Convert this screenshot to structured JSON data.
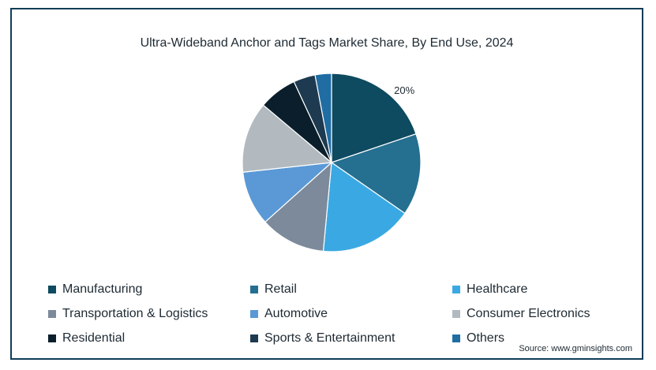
{
  "colors": {
    "frame": "#0f3d57",
    "slice_stroke": "#ffffff"
  },
  "chart_data": {
    "type": "pie",
    "title": "Ultra-Wideband Anchor and Tags Market Share, By End Use, 2024",
    "start_angle_deg": 0,
    "direction": "clockwise",
    "slices": [
      {
        "label": "Manufacturing",
        "value": 20,
        "color": "#0e4a60",
        "data_label": "20%"
      },
      {
        "label": "Retail",
        "value": 15,
        "color": "#256f90",
        "data_label": ""
      },
      {
        "label": "Healthcare",
        "value": 17,
        "color": "#3aa9e3",
        "data_label": ""
      },
      {
        "label": "Transportation & Logistics",
        "value": 12,
        "color": "#7c8a9b",
        "data_label": ""
      },
      {
        "label": "Automotive",
        "value": 10,
        "color": "#5a99d6",
        "data_label": ""
      },
      {
        "label": "Consumer Electronics",
        "value": 13,
        "color": "#b2babf",
        "data_label": ""
      },
      {
        "label": "Residential",
        "value": 7,
        "color": "#0a1f2b",
        "data_label": ""
      },
      {
        "label": "Sports & Entertainment",
        "value": 4,
        "color": "#1d3a50",
        "data_label": ""
      },
      {
        "label": "Others",
        "value": 3,
        "color": "#1f6da3",
        "data_label": ""
      }
    ],
    "legend_placement": "bottom",
    "source": "Source: www.gminsights.com"
  }
}
